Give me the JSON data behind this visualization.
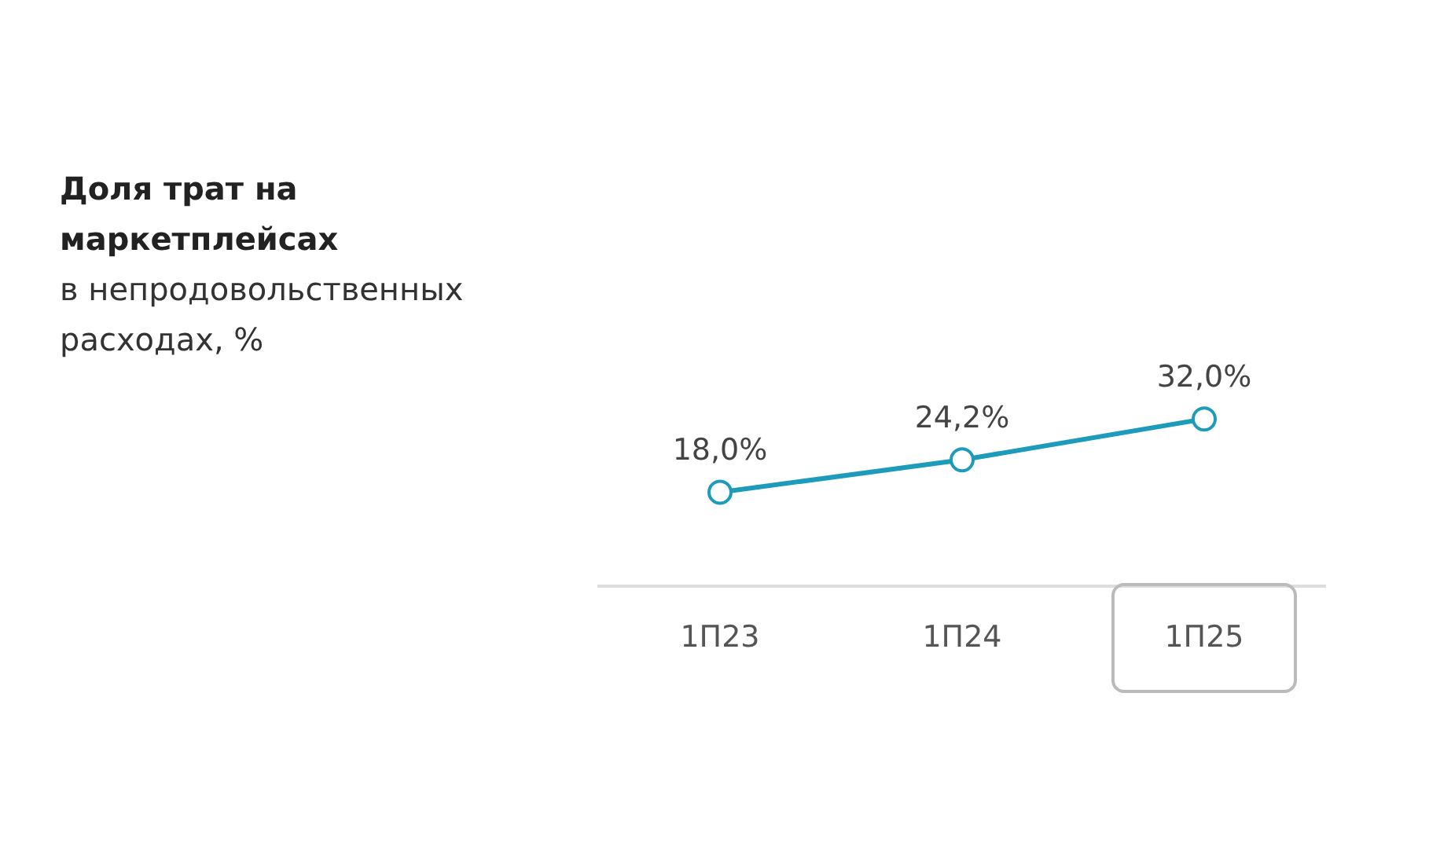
{
  "chart_data": {
    "type": "line",
    "title": "Доля трат на маркетплейсах",
    "subtitle": "в непродовольственных расходах, %",
    "categories": [
      "1П23",
      "1П24",
      "1П25"
    ],
    "series": [
      {
        "color": "#1c9cba",
        "values": [
          18.0,
          24.2,
          32.0
        ],
        "value_labels": [
          "18,0%",
          "24,2%",
          "32,0%"
        ]
      }
    ],
    "tick_labels": "x",
    "grid": false,
    "legend": false,
    "marker": "circle",
    "line_style": "solid"
  }
}
